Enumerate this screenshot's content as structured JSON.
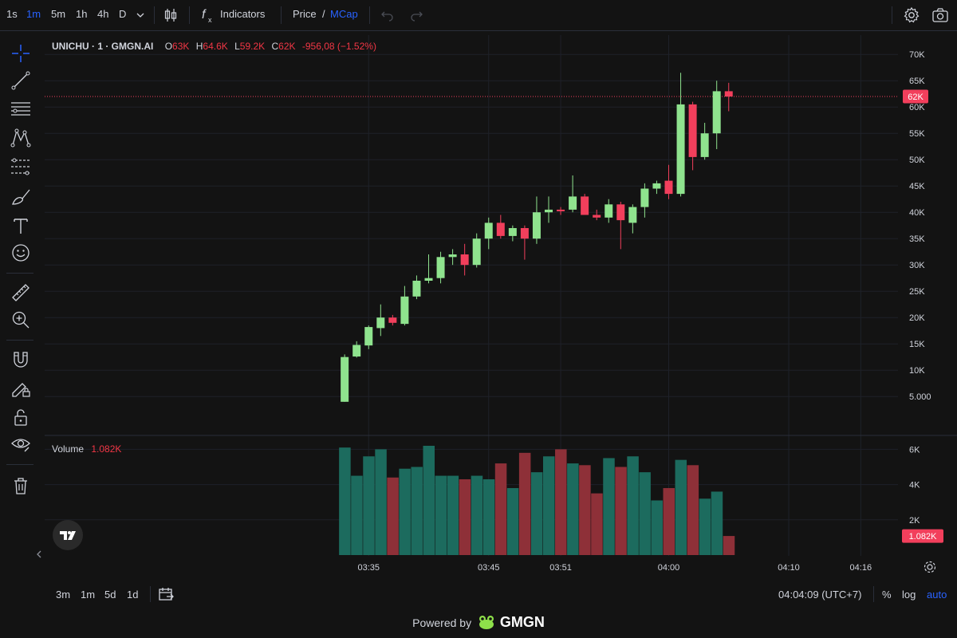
{
  "toolbar": {
    "timeframes": [
      "1s",
      "1m",
      "5m",
      "1h",
      "4h",
      "D"
    ],
    "active_timeframe": "1m",
    "indicators_label": "Indicators",
    "price_label": "Price",
    "slash": "/",
    "mcap_label": "MCap"
  },
  "legend": {
    "symbol": "UNICHU · 1 · GMGN.AI",
    "o_key": "O",
    "o_val": "63K",
    "h_key": "H",
    "h_val": "64.6K",
    "l_key": "L",
    "l_val": "59.2K",
    "c_key": "C",
    "c_val": "62K",
    "change": "-956,08 (−1.52%)"
  },
  "volume_legend": {
    "label": "Volume",
    "value": "1.082K"
  },
  "bottom": {
    "ranges": [
      "3m",
      "1m",
      "5d",
      "1d"
    ],
    "clock": "04:04:09 (UTC+7)",
    "percent": "%",
    "log": "log",
    "auto": "auto"
  },
  "powered": {
    "text": "Powered by",
    "brand": "GMGN"
  },
  "colors": {
    "up": "#8fe38e",
    "down": "#f23f5c",
    "vol_up": "#1c6b5e",
    "vol_down": "#8e3038",
    "last_price_bg": "#f23f5c"
  },
  "chart_data": {
    "type": "candlestick",
    "price_axis": {
      "ticks": [
        5000,
        10000,
        15000,
        20000,
        25000,
        30000,
        35000,
        40000,
        45000,
        50000,
        55000,
        60000,
        65000,
        70000
      ],
      "tick_labels": [
        "5.000",
        "10K",
        "15K",
        "20K",
        "25K",
        "30K",
        "35K",
        "40K",
        "45K",
        "50K",
        "55K",
        "60K",
        "65K",
        "70K"
      ],
      "last_price": 62000,
      "last_price_label": "62K"
    },
    "volume_axis": {
      "ticks": [
        2000,
        4000,
        6000
      ],
      "tick_labels": [
        "2K",
        "4K",
        "6K"
      ],
      "last_volume": 1082,
      "last_volume_label": "1.082K"
    },
    "time_axis": {
      "ticks": [
        "03:35",
        "03:45",
        "03:51",
        "04:00",
        "04:10",
        "04:16"
      ],
      "tick_minutes": [
        -25,
        -15,
        -9,
        0,
        10,
        16
      ]
    },
    "candles": [
      {
        "t": -27,
        "o": 4000,
        "h": 13000,
        "l": 4000,
        "c": 12500,
        "v": 6100
      },
      {
        "t": -26,
        "o": 12600,
        "h": 15500,
        "l": 12400,
        "c": 14800,
        "v": 4500
      },
      {
        "t": -25,
        "o": 14700,
        "h": 18500,
        "l": 14000,
        "c": 18200,
        "v": 5600
      },
      {
        "t": -24,
        "o": 18000,
        "h": 22500,
        "l": 16500,
        "c": 20000,
        "v": 6000
      },
      {
        "t": -23,
        "o": 20000,
        "h": 20500,
        "l": 18500,
        "c": 19000,
        "v": 4400
      },
      {
        "t": -22,
        "o": 18800,
        "h": 26000,
        "l": 18500,
        "c": 24000,
        "v": 4900
      },
      {
        "t": -21,
        "o": 24000,
        "h": 28000,
        "l": 23500,
        "c": 27000,
        "v": 5000
      },
      {
        "t": -20,
        "o": 27000,
        "h": 32000,
        "l": 26500,
        "c": 27500,
        "v": 6200
      },
      {
        "t": -19,
        "o": 27500,
        "h": 32500,
        "l": 26500,
        "c": 31500,
        "v": 4500
      },
      {
        "t": -18,
        "o": 31500,
        "h": 33000,
        "l": 30000,
        "c": 32000,
        "v": 4500
      },
      {
        "t": -17,
        "o": 32000,
        "h": 34000,
        "l": 28000,
        "c": 30000,
        "v": 4300
      },
      {
        "t": -16,
        "o": 30000,
        "h": 36000,
        "l": 29500,
        "c": 35000,
        "v": 4500
      },
      {
        "t": -15,
        "o": 35000,
        "h": 39000,
        "l": 33000,
        "c": 38000,
        "v": 4300
      },
      {
        "t": -14,
        "o": 38000,
        "h": 39500,
        "l": 35000,
        "c": 35500,
        "v": 5200
      },
      {
        "t": -13,
        "o": 35500,
        "h": 37500,
        "l": 34500,
        "c": 37000,
        "v": 3800
      },
      {
        "t": -12,
        "o": 37000,
        "h": 37500,
        "l": 31000,
        "c": 35000,
        "v": 5800
      },
      {
        "t": -11,
        "o": 35000,
        "h": 43000,
        "l": 34000,
        "c": 40000,
        "v": 4700
      },
      {
        "t": -10,
        "o": 40000,
        "h": 43000,
        "l": 38000,
        "c": 40500,
        "v": 5600
      },
      {
        "t": -9,
        "o": 40500,
        "h": 41000,
        "l": 39500,
        "c": 40300,
        "v": 6000
      },
      {
        "t": -8,
        "o": 40500,
        "h": 47000,
        "l": 40000,
        "c": 43000,
        "v": 5200
      },
      {
        "t": -7,
        "o": 43000,
        "h": 43500,
        "l": 39500,
        "c": 39500,
        "v": 5100
      },
      {
        "t": -6,
        "o": 39500,
        "h": 40500,
        "l": 38500,
        "c": 39000,
        "v": 3500
      },
      {
        "t": -5,
        "o": 39000,
        "h": 42500,
        "l": 38000,
        "c": 41500,
        "v": 5500
      },
      {
        "t": -4,
        "o": 41500,
        "h": 42000,
        "l": 33000,
        "c": 38500,
        "v": 5000
      },
      {
        "t": -3,
        "o": 38000,
        "h": 41500,
        "l": 36000,
        "c": 41000,
        "v": 5600
      },
      {
        "t": -2,
        "o": 41000,
        "h": 45500,
        "l": 39000,
        "c": 44500,
        "v": 4700
      },
      {
        "t": -1,
        "o": 44500,
        "h": 46000,
        "l": 43500,
        "c": 45500,
        "v": 3100
      },
      {
        "t": 0,
        "o": 46000,
        "h": 49000,
        "l": 42500,
        "c": 43500,
        "v": 3800
      },
      {
        "t": 1,
        "o": 43500,
        "h": 66500,
        "l": 43000,
        "c": 60500,
        "v": 5400
      },
      {
        "t": 2,
        "o": 60500,
        "h": 61000,
        "l": 48000,
        "c": 50500,
        "v": 5100
      },
      {
        "t": 3,
        "o": 50500,
        "h": 57000,
        "l": 50000,
        "c": 55000,
        "v": 3200
      },
      {
        "t": 4,
        "o": 55000,
        "h": 65000,
        "l": 52000,
        "c": 63000,
        "v": 3600
      },
      {
        "t": 5,
        "o": 63000,
        "h": 64600,
        "l": 59200,
        "c": 62000,
        "v": 1082
      }
    ]
  }
}
